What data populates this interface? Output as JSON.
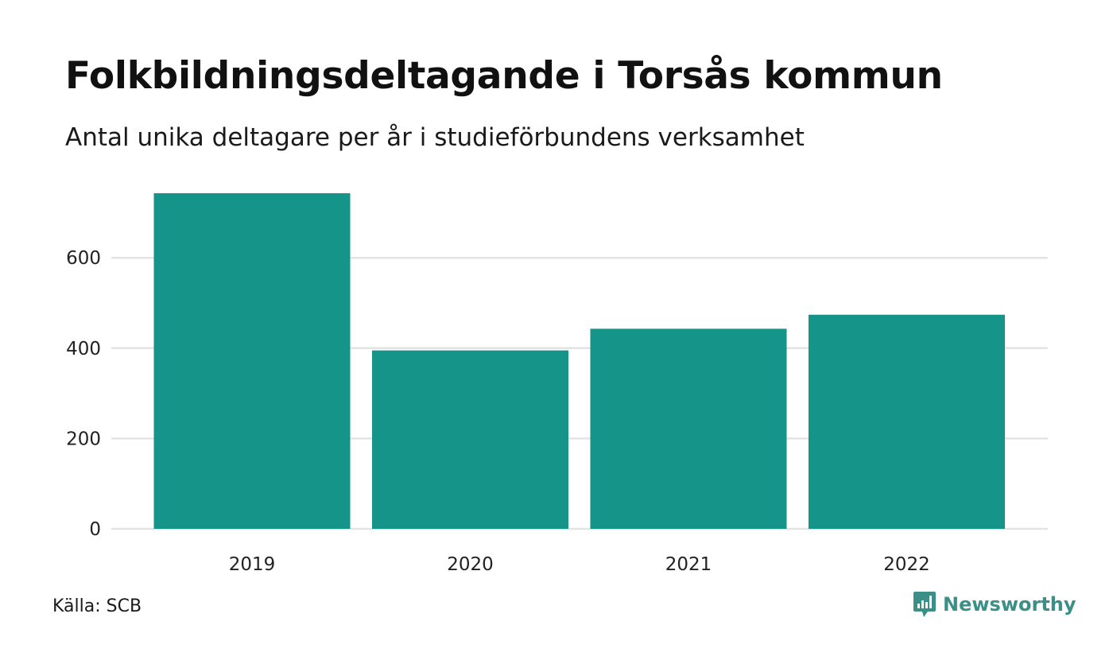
{
  "title": "Folkbildningsdeltagande i Torsås kommun",
  "subtitle": "Antal unika deltagare per år i studieförbundens verksamhet",
  "source": "Källa: SCB",
  "brand": {
    "name": "Newsworthy",
    "icon": "newsworthy-logo-icon",
    "color": "#3a8f86"
  },
  "colors": {
    "bar": "#159589",
    "grid": "#e3e3e3"
  },
  "chart_data": {
    "type": "bar",
    "categories": [
      "2019",
      "2020",
      "2021",
      "2022"
    ],
    "values": [
      743,
      395,
      443,
      474
    ],
    "title": "Folkbildningsdeltagande i Torsås kommun",
    "subtitle": "Antal unika deltagare per år i studieförbundens verksamhet",
    "xlabel": "",
    "ylabel": "",
    "ylim": [
      0,
      750
    ],
    "yticks": [
      0,
      200,
      400,
      600
    ],
    "grid": true,
    "legend": "none"
  }
}
